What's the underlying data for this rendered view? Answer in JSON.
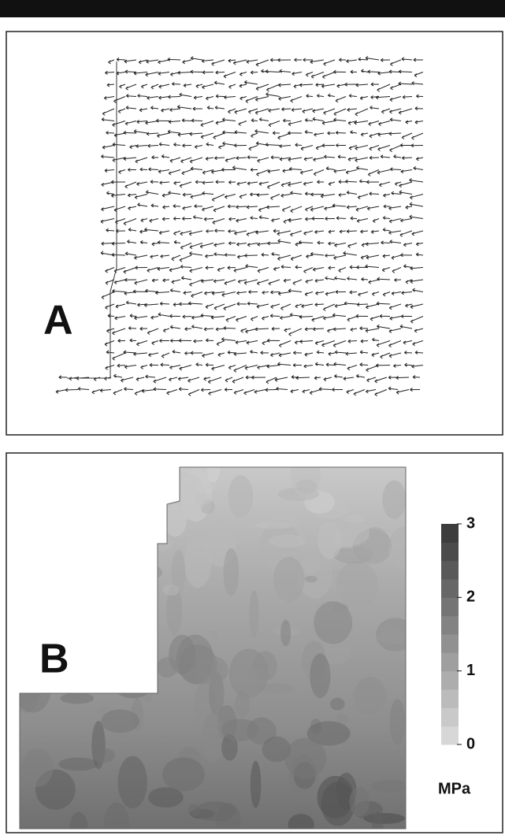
{
  "panels": [
    {
      "label": "A"
    },
    {
      "label": "B"
    }
  ],
  "colorbar": {
    "lim": [
      0,
      3
    ],
    "ticks": [
      0,
      1,
      2,
      3
    ],
    "unit": "MPa"
  }
}
